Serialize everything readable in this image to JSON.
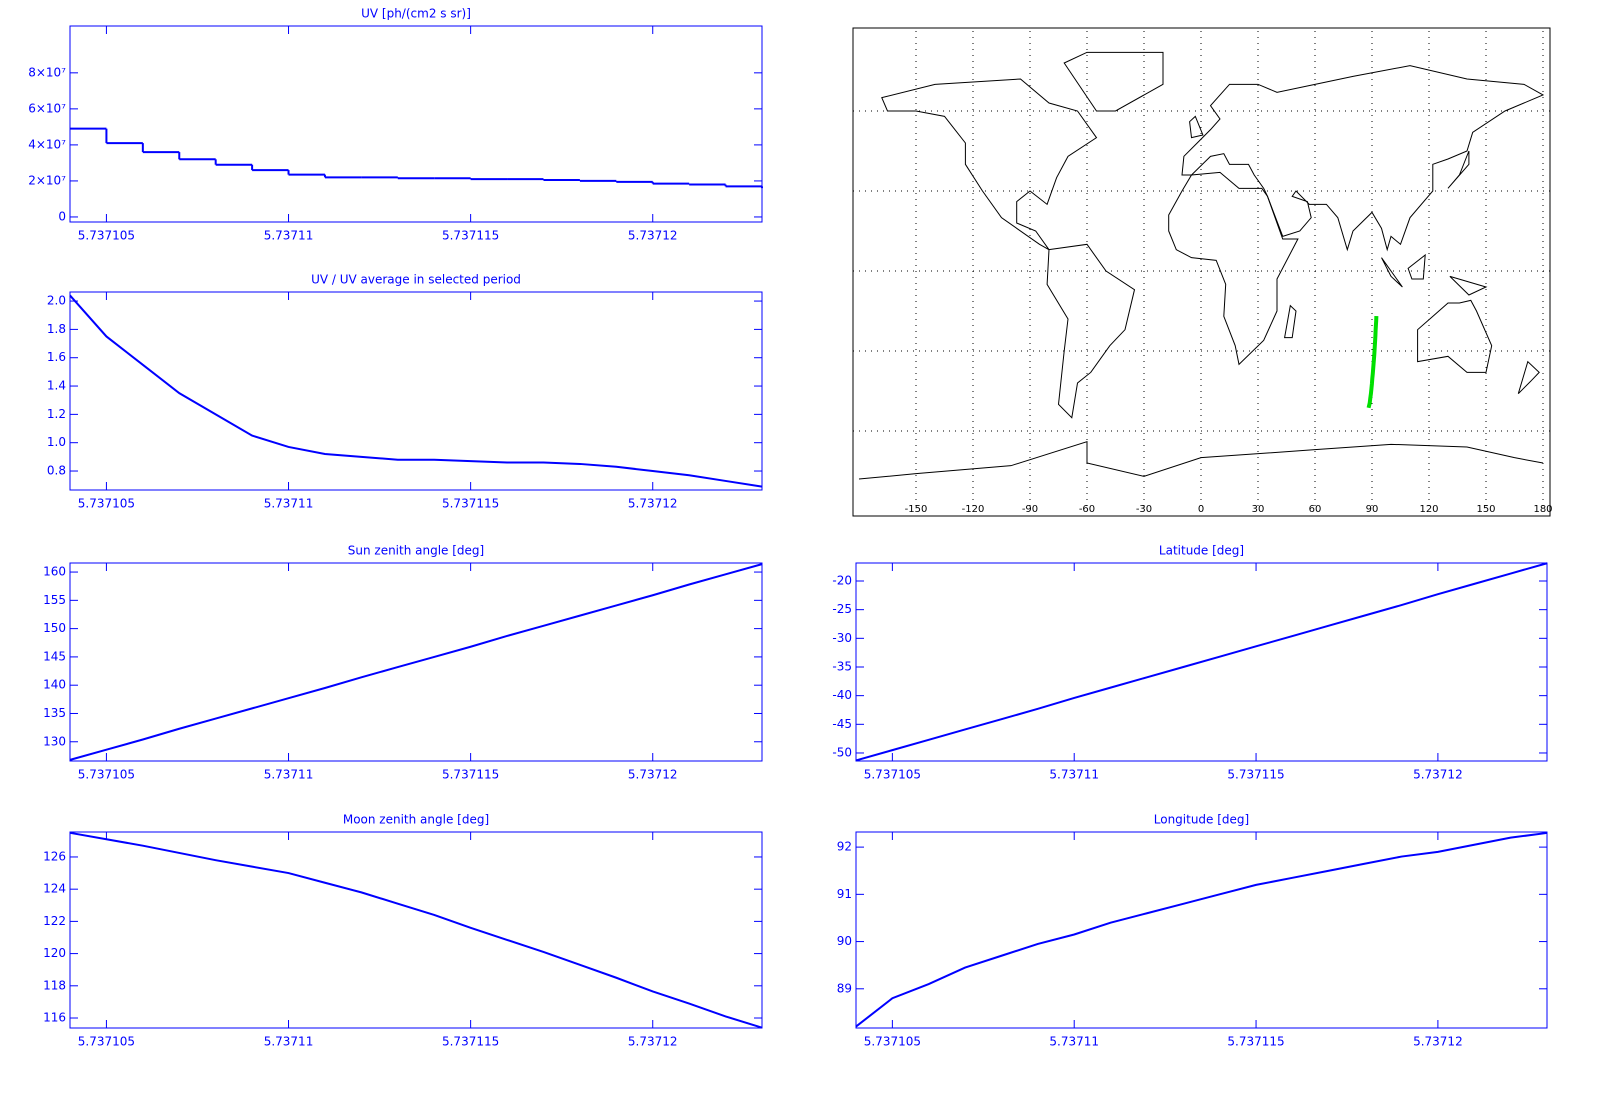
{
  "chart_data": [
    {
      "type": "line",
      "step": true,
      "title": "UV [ph/(cm2 s sr)]",
      "color": "#0000ff",
      "x": [
        5.737104,
        5.737105,
        5.737106,
        5.737107,
        5.737108,
        5.737109,
        5.73711,
        5.737111,
        5.737112,
        5.737113,
        5.737114,
        5.737115,
        5.737116,
        5.737117,
        5.737118,
        5.737119,
        5.73712,
        5.737121,
        5.737122,
        5.737123
      ],
      "values": [
        49000000,
        41000000,
        36000000,
        32000000,
        29000000,
        26000000,
        23500000,
        22000000,
        22000000,
        21500000,
        21500000,
        21000000,
        21000000,
        20500000,
        20000000,
        19500000,
        18500000,
        18000000,
        17000000,
        16000000
      ],
      "xlim": [
        5.737104,
        5.737123
      ],
      "ylim": [
        -2800000,
        106000000
      ],
      "xticks": [
        5.737105,
        5.73711,
        5.737115,
        5.73712
      ],
      "yticks": [
        0,
        {
          "value": 20000000,
          "label": "2×10⁷"
        },
        {
          "value": 40000000,
          "label": "4×10⁷"
        },
        {
          "value": 60000000,
          "label": "6×10⁷"
        },
        {
          "value": 80000000,
          "label": "8×10⁷"
        }
      ]
    },
    {
      "type": "line",
      "title": "UV / UV average in selected period",
      "color": "#0000ff",
      "x": [
        5.737104,
        5.737105,
        5.737106,
        5.737107,
        5.737108,
        5.737109,
        5.73711,
        5.737111,
        5.737112,
        5.737113,
        5.737114,
        5.737115,
        5.737116,
        5.737117,
        5.737118,
        5.737119,
        5.73712,
        5.737121,
        5.737122,
        5.737123
      ],
      "values": [
        2.04,
        1.75,
        1.55,
        1.35,
        1.2,
        1.05,
        0.97,
        0.92,
        0.9,
        0.88,
        0.88,
        0.87,
        0.86,
        0.86,
        0.85,
        0.83,
        0.8,
        0.77,
        0.73,
        0.69
      ],
      "xlim": [
        5.737104,
        5.737123
      ],
      "ylim": [
        0.666,
        2.064
      ],
      "xticks": [
        5.737105,
        5.73711,
        5.737115,
        5.73712
      ],
      "yticks": [
        0.8,
        {
          "value": 1,
          "label": "1.0"
        },
        1.2,
        1.4,
        1.6,
        1.8,
        {
          "value": 2,
          "label": "2.0"
        }
      ]
    },
    {
      "type": "map",
      "color": "#00e000",
      "x": [
        88.2,
        88.8,
        89.1,
        89.45,
        89.7,
        89.95,
        90.15,
        90.4,
        90.6,
        90.8,
        91.0,
        91.2,
        91.35,
        91.5,
        91.65,
        91.8,
        91.9,
        92.05,
        92.2,
        92.3
      ],
      "values": [
        -51.3,
        -49.5,
        -47.7,
        -45.9,
        -44.1,
        -42.3,
        -40.4,
        -38.6,
        -36.8,
        -35.0,
        -33.2,
        -31.4,
        -29.6,
        -27.8,
        -26.0,
        -24.2,
        -22.3,
        -20.5,
        -18.7,
        -16.9
      ],
      "xlim": [
        -180,
        180
      ],
      "ylim": [
        -90,
        90
      ],
      "xticks": [
        -150,
        -120,
        -90,
        -60,
        -30,
        0,
        30,
        60,
        90,
        120,
        150,
        180
      ],
      "yticks": [
        -60,
        -30,
        0,
        30,
        60
      ]
    },
    {
      "type": "line",
      "title": "Sun zenith angle [deg]",
      "color": "#0000ff",
      "x": [
        5.737104,
        5.737105,
        5.737106,
        5.737107,
        5.737108,
        5.737109,
        5.73711,
        5.737111,
        5.737112,
        5.737113,
        5.737114,
        5.737115,
        5.737116,
        5.737117,
        5.737118,
        5.737119,
        5.73712,
        5.737121,
        5.737122,
        5.737123
      ],
      "values": [
        126.8,
        128.6,
        130.4,
        132.3,
        134.1,
        135.9,
        137.7,
        139.5,
        141.4,
        143.2,
        145.0,
        146.8,
        148.7,
        150.5,
        152.3,
        154.1,
        155.9,
        157.8,
        159.6,
        161.4
      ],
      "xlim": [
        5.737104,
        5.737123
      ],
      "ylim": [
        126.6,
        161.6
      ],
      "xticks": [
        5.737105,
        5.73711,
        5.737115,
        5.73712
      ],
      "yticks": [
        130,
        135,
        140,
        145,
        150,
        155,
        160
      ]
    },
    {
      "type": "line",
      "title": "Latitude [deg]",
      "color": "#0000ff",
      "x": [
        5.737104,
        5.737105,
        5.737106,
        5.737107,
        5.737108,
        5.737109,
        5.73711,
        5.737111,
        5.737112,
        5.737113,
        5.737114,
        5.737115,
        5.737116,
        5.737117,
        5.737118,
        5.737119,
        5.73712,
        5.737121,
        5.737122,
        5.737123
      ],
      "values": [
        -51.3,
        -49.5,
        -47.7,
        -45.9,
        -44.1,
        -42.3,
        -40.4,
        -38.6,
        -36.8,
        -35.0,
        -33.2,
        -31.4,
        -29.6,
        -27.8,
        -26.0,
        -24.2,
        -22.3,
        -20.5,
        -18.7,
        -16.9
      ],
      "xlim": [
        5.737104,
        5.737123
      ],
      "ylim": [
        -51.4,
        -16.86
      ],
      "xticks": [
        5.737105,
        5.73711,
        5.737115,
        5.73712
      ],
      "yticks": [
        -50,
        -45,
        -40,
        -35,
        -30,
        -25,
        -20
      ]
    },
    {
      "type": "line",
      "title": "Moon zenith angle [deg]",
      "color": "#0000ff",
      "x": [
        5.737104,
        5.737105,
        5.737106,
        5.737107,
        5.737108,
        5.737109,
        5.73711,
        5.737111,
        5.737112,
        5.737113,
        5.737114,
        5.737115,
        5.737116,
        5.737117,
        5.737118,
        5.737119,
        5.73712,
        5.737121,
        5.737122,
        5.737123
      ],
      "values": [
        127.5,
        127.1,
        126.7,
        126.25,
        125.8,
        125.4,
        125.0,
        124.4,
        123.8,
        123.1,
        122.4,
        121.6,
        120.85,
        120.1,
        119.3,
        118.5,
        117.65,
        116.9,
        116.1,
        115.4
      ],
      "xlim": [
        5.737104,
        5.737123
      ],
      "ylim": [
        115.38,
        127.55
      ],
      "xticks": [
        5.737105,
        5.73711,
        5.737115,
        5.73712
      ],
      "yticks": [
        116,
        118,
        120,
        122,
        124,
        126
      ]
    },
    {
      "type": "line",
      "title": "Longitude [deg]",
      "color": "#0000ff",
      "x": [
        5.737104,
        5.737105,
        5.737106,
        5.737107,
        5.737108,
        5.737109,
        5.73711,
        5.737111,
        5.737112,
        5.737113,
        5.737114,
        5.737115,
        5.737116,
        5.737117,
        5.737118,
        5.737119,
        5.73712,
        5.737121,
        5.737122,
        5.737123
      ],
      "values": [
        88.2,
        88.8,
        89.1,
        89.45,
        89.7,
        89.95,
        90.15,
        90.4,
        90.6,
        90.8,
        91.0,
        91.2,
        91.35,
        91.5,
        91.65,
        91.8,
        91.9,
        92.05,
        92.2,
        92.3
      ],
      "xlim": [
        5.737104,
        5.737123
      ],
      "ylim": [
        88.17,
        92.32
      ],
      "xticks": [
        5.737105,
        5.73711,
        5.737115,
        5.73712
      ],
      "yticks": [
        89,
        90,
        91,
        92
      ]
    }
  ]
}
